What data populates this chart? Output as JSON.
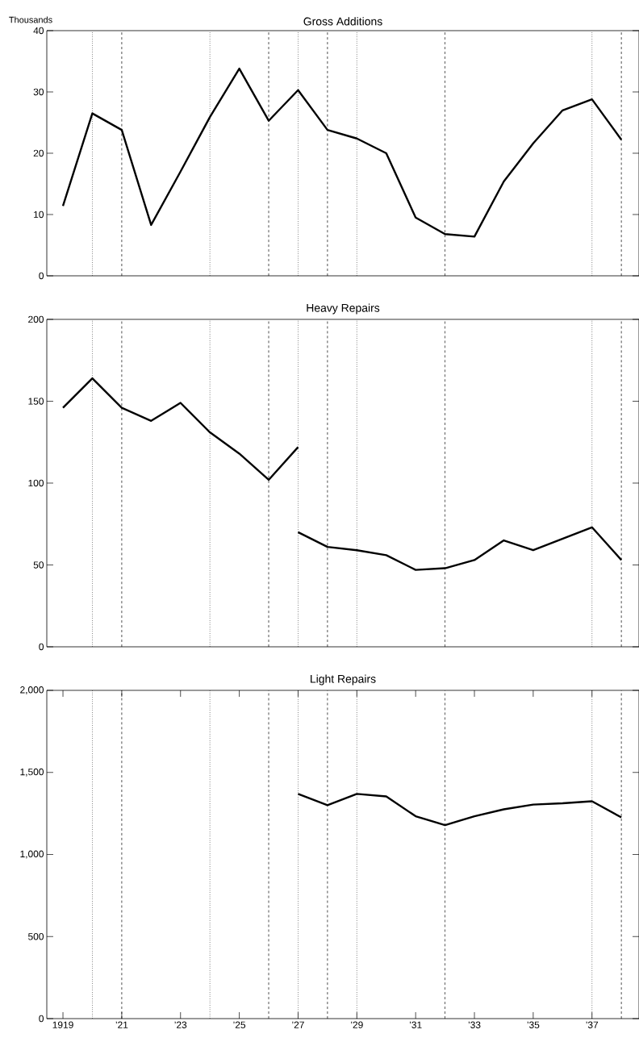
{
  "chart_data": [
    {
      "type": "line",
      "title": "Gross Additions",
      "ylabel": "Thousands",
      "xlim": [
        1918.45,
        1938.6
      ],
      "ylim": [
        0,
        40
      ],
      "yticks": [
        0,
        10,
        20,
        30,
        40
      ],
      "tick_labels": "y",
      "grid": false,
      "line_style": "solid",
      "marker": "none",
      "series": [
        {
          "color": "#000000",
          "x": [
            1919,
            1920,
            1921,
            1922,
            1923,
            1924,
            1925,
            1926,
            1927,
            1928,
            1929,
            1930,
            1931,
            1932,
            1933,
            1934,
            1935,
            1936,
            1937,
            1938
          ],
          "values": [
            11.4,
            26.5,
            23.8,
            8.3,
            17.0,
            25.9,
            33.8,
            25.3,
            30.3,
            23.8,
            22.4,
            20.0,
            9.5,
            6.8,
            6.4,
            15.4,
            21.6,
            27.0,
            28.8,
            22.2
          ]
        }
      ],
      "ref_lines": [
        {
          "axis": "x",
          "value": 1920,
          "line_style": "dotted"
        },
        {
          "axis": "x",
          "value": 1921,
          "line_style": "dashed"
        },
        {
          "axis": "x",
          "value": 1924,
          "line_style": "dotted"
        },
        {
          "axis": "x",
          "value": 1926,
          "line_style": "dashed"
        },
        {
          "axis": "x",
          "value": 1927,
          "line_style": "dotted"
        },
        {
          "axis": "x",
          "value": 1928,
          "line_style": "dashed"
        },
        {
          "axis": "x",
          "value": 1929,
          "line_style": "dotted"
        },
        {
          "axis": "x",
          "value": 1932,
          "line_style": "dashed"
        },
        {
          "axis": "x",
          "value": 1937,
          "line_style": "dotted"
        },
        {
          "axis": "x",
          "value": 1938,
          "line_style": "dashed"
        }
      ]
    },
    {
      "type": "line",
      "title": "Heavy Repairs",
      "xlim": [
        1918.45,
        1938.6
      ],
      "ylim": [
        0,
        200
      ],
      "yticks": [
        0,
        50,
        100,
        150,
        200
      ],
      "tick_labels": "y",
      "grid": false,
      "line_style": "solid",
      "marker": "none",
      "series": [
        {
          "color": "#000000",
          "x": [
            1919,
            1920,
            1921,
            1922,
            1923,
            1924,
            1925,
            1926,
            1927
          ],
          "values": [
            146,
            164,
            146,
            138,
            149,
            131,
            118,
            102,
            122
          ]
        },
        {
          "color": "#000000",
          "x": [
            1927,
            1928,
            1929,
            1930,
            1931,
            1932,
            1933,
            1934,
            1935,
            1936,
            1937,
            1938
          ],
          "values": [
            70,
            61,
            59,
            56,
            47,
            48,
            53,
            65,
            59,
            66,
            73,
            53
          ]
        }
      ],
      "ref_lines": [
        {
          "axis": "x",
          "value": 1920,
          "line_style": "dotted"
        },
        {
          "axis": "x",
          "value": 1921,
          "line_style": "dashed"
        },
        {
          "axis": "x",
          "value": 1924,
          "line_style": "dotted"
        },
        {
          "axis": "x",
          "value": 1926,
          "line_style": "dashed"
        },
        {
          "axis": "x",
          "value": 1927,
          "line_style": "dotted"
        },
        {
          "axis": "x",
          "value": 1928,
          "line_style": "dashed"
        },
        {
          "axis": "x",
          "value": 1929,
          "line_style": "dotted"
        },
        {
          "axis": "x",
          "value": 1932,
          "line_style": "dashed"
        },
        {
          "axis": "x",
          "value": 1937,
          "line_style": "dotted"
        },
        {
          "axis": "x",
          "value": 1938,
          "line_style": "dashed"
        }
      ]
    },
    {
      "type": "line",
      "title": "Light Repairs",
      "xlim": [
        1918.45,
        1938.6
      ],
      "xticks": [
        {
          "value": 1919,
          "label": "1919"
        },
        {
          "value": 1921,
          "label": "’21"
        },
        {
          "value": 1923,
          "label": "’23"
        },
        {
          "value": 1925,
          "label": "’25"
        },
        {
          "value": 1927,
          "label": "’27"
        },
        {
          "value": 1929,
          "label": "’29"
        },
        {
          "value": 1931,
          "label": "’31"
        },
        {
          "value": 1933,
          "label": "’33"
        },
        {
          "value": 1935,
          "label": "’35"
        },
        {
          "value": 1937,
          "label": "’37"
        }
      ],
      "ylim": [
        0,
        2000
      ],
      "yticks": [
        0,
        500,
        {
          "value": 1000,
          "label": "1,000"
        },
        {
          "value": 1500,
          "label": "1,500"
        },
        {
          "value": 2000,
          "label": "2,000"
        }
      ],
      "grid": false,
      "line_style": "solid",
      "marker": "none",
      "series": [
        {
          "color": "#000000",
          "x": [
            1927,
            1928,
            1929,
            1930,
            1931,
            1932,
            1933,
            1934,
            1935,
            1936,
            1937,
            1938
          ],
          "values": [
            1369,
            1300,
            1369,
            1354,
            1233,
            1179,
            1233,
            1275,
            1304,
            1312,
            1324,
            1226
          ]
        }
      ],
      "ref_lines": [
        {
          "axis": "x",
          "value": 1920,
          "line_style": "dotted"
        },
        {
          "axis": "x",
          "value": 1921,
          "line_style": "dashed"
        },
        {
          "axis": "x",
          "value": 1924,
          "line_style": "dotted"
        },
        {
          "axis": "x",
          "value": 1926,
          "line_style": "dashed"
        },
        {
          "axis": "x",
          "value": 1927,
          "line_style": "dotted"
        },
        {
          "axis": "x",
          "value": 1928,
          "line_style": "dashed"
        },
        {
          "axis": "x",
          "value": 1929,
          "line_style": "dotted"
        },
        {
          "axis": "x",
          "value": 1932,
          "line_style": "dashed"
        },
        {
          "axis": "x",
          "value": 1937,
          "line_style": "dotted"
        },
        {
          "axis": "x",
          "value": 1938,
          "line_style": "dashed"
        }
      ]
    }
  ]
}
